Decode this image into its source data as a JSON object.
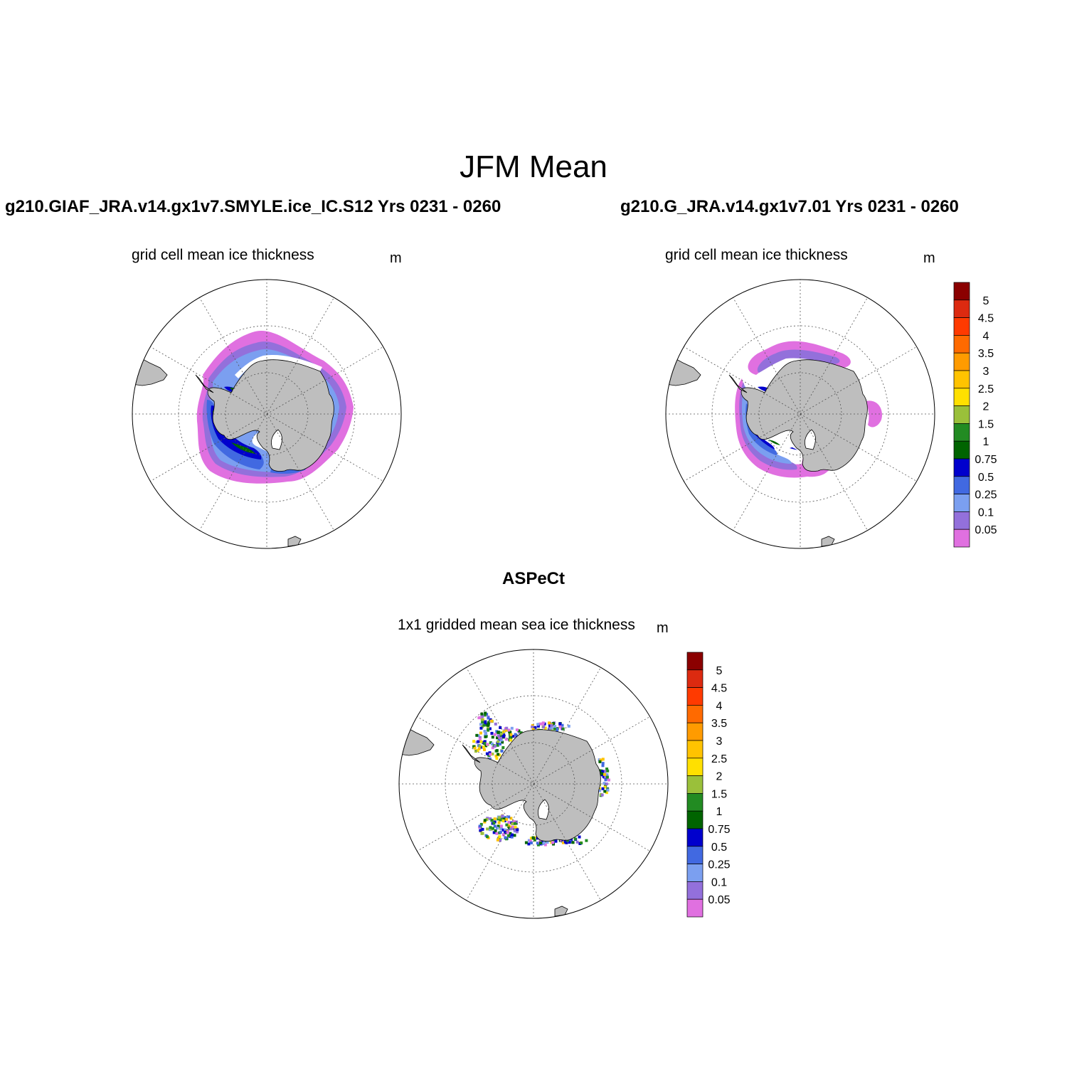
{
  "figure": {
    "title": "JFM Mean"
  },
  "panels": [
    {
      "title": "g210.GIAF_JRA.v14.gx1v7.SMYLE.ice_IC.S12  Yrs 0231 - 0260",
      "subtitle": "grid cell mean ice thickness",
      "units": "m"
    },
    {
      "title": "g210.G_JRA.v14.gx1v7.01  Yrs 0231 - 0260",
      "subtitle": "grid cell mean ice thickness",
      "units": "m"
    },
    {
      "title": "ASPeCt",
      "subtitle": "1x1 gridded mean sea ice thickness",
      "units": "m"
    }
  ],
  "colorbar": {
    "levels": [
      "5",
      "4.5",
      "4",
      "3.5",
      "3",
      "2.5",
      "2",
      "1.5",
      "1",
      "0.75",
      "0.5",
      "0.25",
      "0.1",
      "0.05"
    ],
    "colors_top_to_bottom": [
      "#8b0000",
      "#dc2a10",
      "#ff3a00",
      "#ff6a00",
      "#ff9b00",
      "#ffc300",
      "#ffe000",
      "#9ac03a",
      "#228b22",
      "#006400",
      "#0000cd",
      "#4169e1",
      "#7b9ff0",
      "#9370db",
      "#e070e0"
    ]
  },
  "map": {
    "projection": "south-polar-stereographic",
    "land_color": "#bebebe",
    "coastline_color": "#000000"
  }
}
